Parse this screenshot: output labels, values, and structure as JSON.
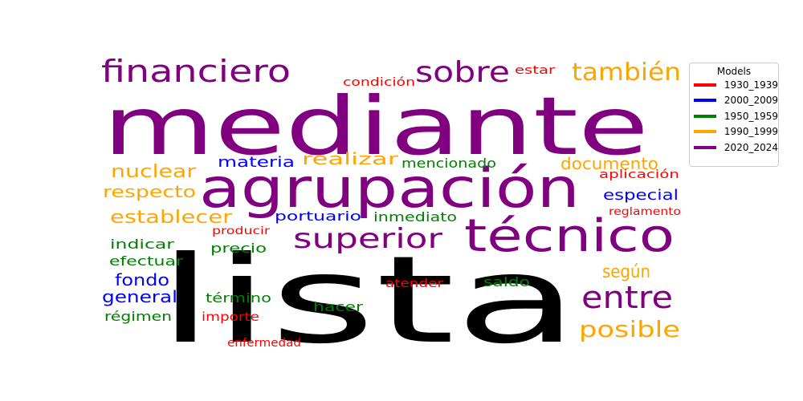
{
  "chart_data": {
    "type": "wordcloud",
    "legend": {
      "title": "Models",
      "placement": "right",
      "entries": [
        {
          "label": "1930_1939",
          "color": "#ff0000"
        },
        {
          "label": "2000_2009",
          "color": "#0000ff"
        },
        {
          "label": "1950_1959",
          "color": "#008000"
        },
        {
          "label": "1990_1999",
          "color": "#ffa500"
        },
        {
          "label": "2020_2024",
          "color": "#800080"
        }
      ]
    },
    "words": [
      {
        "text": "mediante",
        "color": "#800080"
      },
      {
        "text": "lista",
        "color": "#000000"
      },
      {
        "text": "agrupación",
        "color": "#800080"
      },
      {
        "text": "técnico",
        "color": "#800080"
      },
      {
        "text": "financiero",
        "color": "#800080"
      },
      {
        "text": "sobre",
        "color": "#800080"
      },
      {
        "text": "también",
        "color": "#ffa500"
      },
      {
        "text": "superior",
        "color": "#800080"
      },
      {
        "text": "entre",
        "color": "#800080"
      },
      {
        "text": "posible",
        "color": "#ffa500"
      },
      {
        "text": "según",
        "color": "#ffa500"
      },
      {
        "text": "nuclear",
        "color": "#ffa500"
      },
      {
        "text": "respecto",
        "color": "#ffa500"
      },
      {
        "text": "establecer",
        "color": "#ffa500"
      },
      {
        "text": "realizar",
        "color": "#ffa500"
      },
      {
        "text": "documento",
        "color": "#ffa500"
      },
      {
        "text": "materia",
        "color": "#0000ff"
      },
      {
        "text": "especial",
        "color": "#0000ff"
      },
      {
        "text": "portuario",
        "color": "#0000ff"
      },
      {
        "text": "fondo",
        "color": "#0000ff"
      },
      {
        "text": "general",
        "color": "#0000ff"
      },
      {
        "text": "mencionado",
        "color": "#008000"
      },
      {
        "text": "inmediato",
        "color": "#008000"
      },
      {
        "text": "indicar",
        "color": "#008000"
      },
      {
        "text": "efectuar",
        "color": "#008000"
      },
      {
        "text": "precio",
        "color": "#008000"
      },
      {
        "text": "saldo",
        "color": "#008000"
      },
      {
        "text": "término",
        "color": "#008000"
      },
      {
        "text": "hacer",
        "color": "#008000"
      },
      {
        "text": "régimen",
        "color": "#008000"
      },
      {
        "text": "condición",
        "color": "#ff0000"
      },
      {
        "text": "estar",
        "color": "#ff0000"
      },
      {
        "text": "aplicación",
        "color": "#ff0000"
      },
      {
        "text": "reglamento",
        "color": "#ff0000"
      },
      {
        "text": "producir",
        "color": "#ff0000"
      },
      {
        "text": "atender",
        "color": "#ff0000"
      },
      {
        "text": "importe",
        "color": "#ff0000"
      },
      {
        "text": "enfermedad",
        "color": "#ff0000"
      }
    ]
  }
}
